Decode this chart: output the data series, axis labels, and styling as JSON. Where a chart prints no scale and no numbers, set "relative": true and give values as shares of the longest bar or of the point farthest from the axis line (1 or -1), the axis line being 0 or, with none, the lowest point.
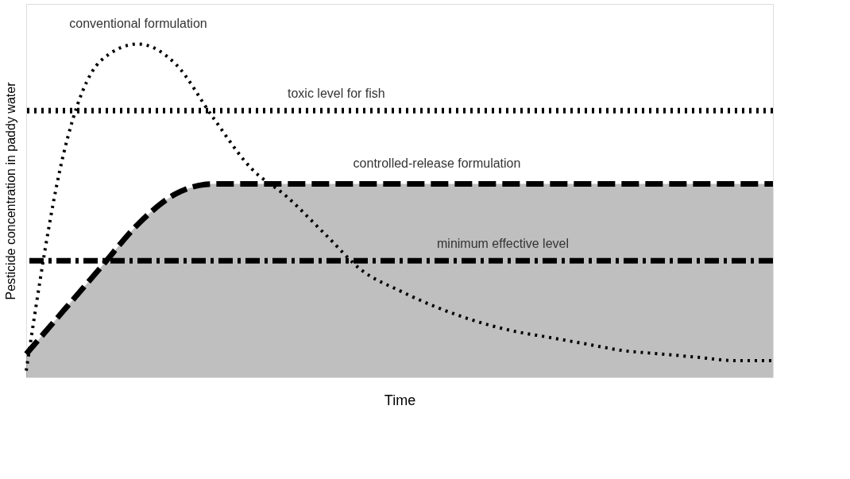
{
  "chart_data": {
    "type": "line",
    "relative": true,
    "xlabel": "Time",
    "ylabel": "Pesticide concentration in paddy water",
    "categories": [
      null,
      null,
      null,
      null,
      null,
      null,
      null,
      null,
      null,
      null,
      null,
      null,
      null,
      null,
      null,
      null,
      null,
      null,
      null,
      null,
      null
    ],
    "series": [
      {
        "name": "conventional formulation",
        "line_style": "dotted",
        "color": "#000000",
        "values": [
          0.02,
          0.67,
          0.95,
          1.0,
          0.94,
          0.78,
          0.63,
          0.54,
          0.43,
          0.32,
          0.26,
          0.21,
          0.17,
          0.14,
          0.12,
          0.1,
          0.08,
          0.07,
          0.06,
          0.05,
          0.05
        ]
      },
      {
        "name": "controlled-release formulation",
        "type": "area",
        "line_style": "dashed",
        "color": "#000000",
        "values": [
          0.07,
          0.2,
          0.33,
          0.46,
          0.55,
          0.58,
          0.58,
          0.58,
          0.58,
          0.58,
          0.58,
          0.58,
          0.58,
          0.58,
          0.58,
          0.58,
          0.58,
          0.58,
          0.58,
          0.58,
          0.58
        ]
      }
    ],
    "ref_lines": [
      {
        "axis": "y",
        "value": 0.8,
        "label": "toxic level for fish",
        "color": "#000000",
        "line_style": "dotted"
      },
      {
        "axis": "y",
        "value": 0.35,
        "label": "minimum effective level",
        "color": "#000000",
        "line_style": "dashdot"
      }
    ],
    "grid": false,
    "legend": false,
    "tick_labels": false
  }
}
